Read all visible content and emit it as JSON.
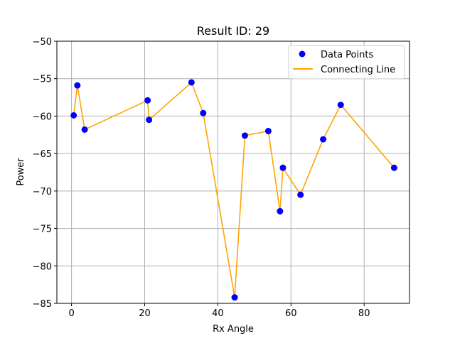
{
  "chart_data": {
    "type": "scatter",
    "title": "Result ID: 29",
    "xlabel": "Rx Angle",
    "ylabel": "Power",
    "xlim": [
      -4,
      92.4
    ],
    "ylim": [
      -85,
      -50
    ],
    "xticks": [
      0,
      20,
      40,
      60,
      80
    ],
    "yticks": [
      -85,
      -80,
      -75,
      -70,
      -65,
      -60,
      -55,
      -50
    ],
    "xtick_labels": [
      "0",
      "20",
      "40",
      "60",
      "80"
    ],
    "ytick_labels": [
      "−85",
      "−80",
      "−75",
      "−70",
      "−65",
      "−60",
      "−55",
      "−50"
    ],
    "grid": true,
    "legend_position": "top-right",
    "series": [
      {
        "name": "Data Points",
        "kind": "scatter",
        "color": "#0000ff",
        "x": [
          0.6,
          1.6,
          3.6,
          20.8,
          21.2,
          32.8,
          36.0,
          44.6,
          47.4,
          53.8,
          57.0,
          57.8,
          62.6,
          68.8,
          73.6,
          88.2
        ],
        "y": [
          -59.9,
          -55.9,
          -61.8,
          -57.9,
          -60.5,
          -55.5,
          -59.6,
          -84.2,
          -62.6,
          -62.0,
          -72.7,
          -66.9,
          -70.5,
          -63.1,
          -58.5,
          -66.9
        ]
      },
      {
        "name": "Connecting Line",
        "kind": "line",
        "color": "#ffa500",
        "x": [
          0.6,
          1.6,
          3.6,
          20.8,
          21.2,
          32.8,
          36.0,
          44.6,
          47.4,
          53.8,
          57.0,
          57.8,
          62.6,
          68.8,
          73.6,
          88.2
        ],
        "y": [
          -59.9,
          -55.9,
          -61.8,
          -57.9,
          -60.5,
          -55.5,
          -59.6,
          -84.2,
          -62.6,
          -62.0,
          -72.7,
          -66.9,
          -70.5,
          -63.1,
          -58.5,
          -66.9
        ]
      }
    ]
  }
}
